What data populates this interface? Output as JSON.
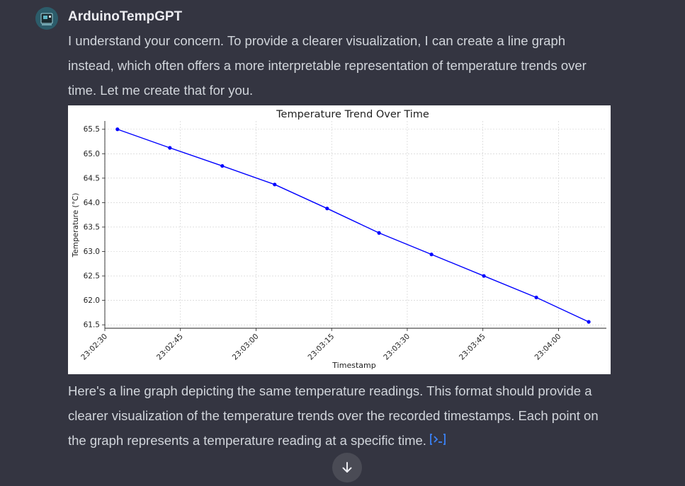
{
  "author": {
    "name": "ArduinoTempGPT",
    "avatar_icon": "arduino-board-icon"
  },
  "message_intro": "I understand your concern. To provide a clearer visualization, I can create a line graph instead, which often offers a more interpretable representation of temperature trends over time. Let me create that for you.",
  "message_followup": "Here's a line graph depicting the same temperature readings. This format should provide a clearer visualization of the temperature trends over the recorded timestamps. Each point on the graph represents a temperature reading at a specific time.",
  "code_link_icon": "code-interpreter-icon",
  "scroll_button_icon": "arrow-down-icon",
  "colors": {
    "background": "#343541",
    "line": "#0000ff",
    "link": "#3b82f6"
  },
  "chart_data": {
    "type": "line",
    "title": "Temperature Trend Over Time",
    "xlabel": "Timestamp",
    "ylabel": "Temperature (°C)",
    "x_ticks": [
      "23:02:30",
      "23:02:45",
      "23:03:00",
      "23:03:15",
      "23:03:30",
      "23:03:45",
      "23:04:00"
    ],
    "y_ticks": [
      "61.5",
      "62.0",
      "62.5",
      "63.0",
      "63.5",
      "64.0",
      "64.5",
      "65.0",
      "65.5"
    ],
    "xlim_seconds": [
      0,
      99.5
    ],
    "ylim": [
      61.43,
      65.67
    ],
    "grid": true,
    "series": [
      {
        "x_seconds": [
          2.5,
          12.9,
          23.3,
          33.7,
          44.1,
          54.4,
          64.8,
          75.2,
          85.6,
          96.0
        ],
        "y": [
          65.5,
          65.12,
          64.75,
          64.37,
          63.88,
          63.38,
          62.94,
          62.5,
          62.06,
          61.56
        ]
      }
    ]
  }
}
